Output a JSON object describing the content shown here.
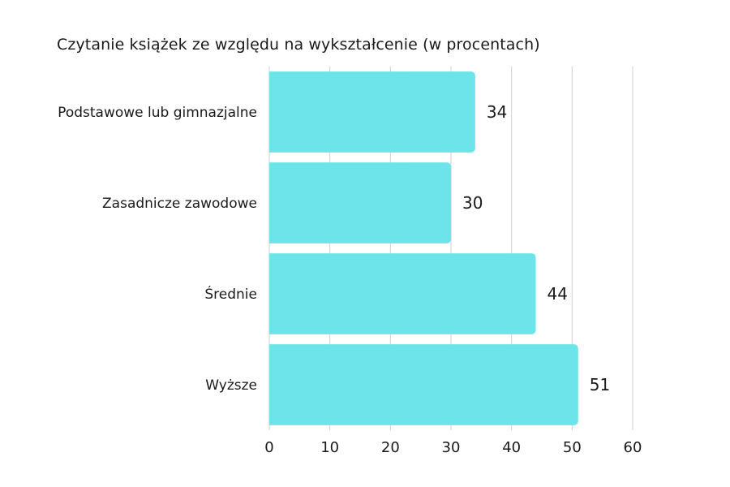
{
  "chart_data": {
    "type": "bar",
    "orientation": "horizontal",
    "title": "Czytanie książek ze względu na wykształcenie (w procentach)",
    "categories": [
      "Podstawowe lub gimnazjalne",
      "Zasadnicze zawodowe",
      "Średnie",
      "Wyższe"
    ],
    "values": [
      34,
      30,
      44,
      51
    ],
    "xlim": [
      0,
      60
    ],
    "x_ticks": [
      0,
      10,
      20,
      30,
      40,
      50,
      60
    ],
    "grid": true,
    "bar_color": "#6ce4e9",
    "data_labels": true
  }
}
